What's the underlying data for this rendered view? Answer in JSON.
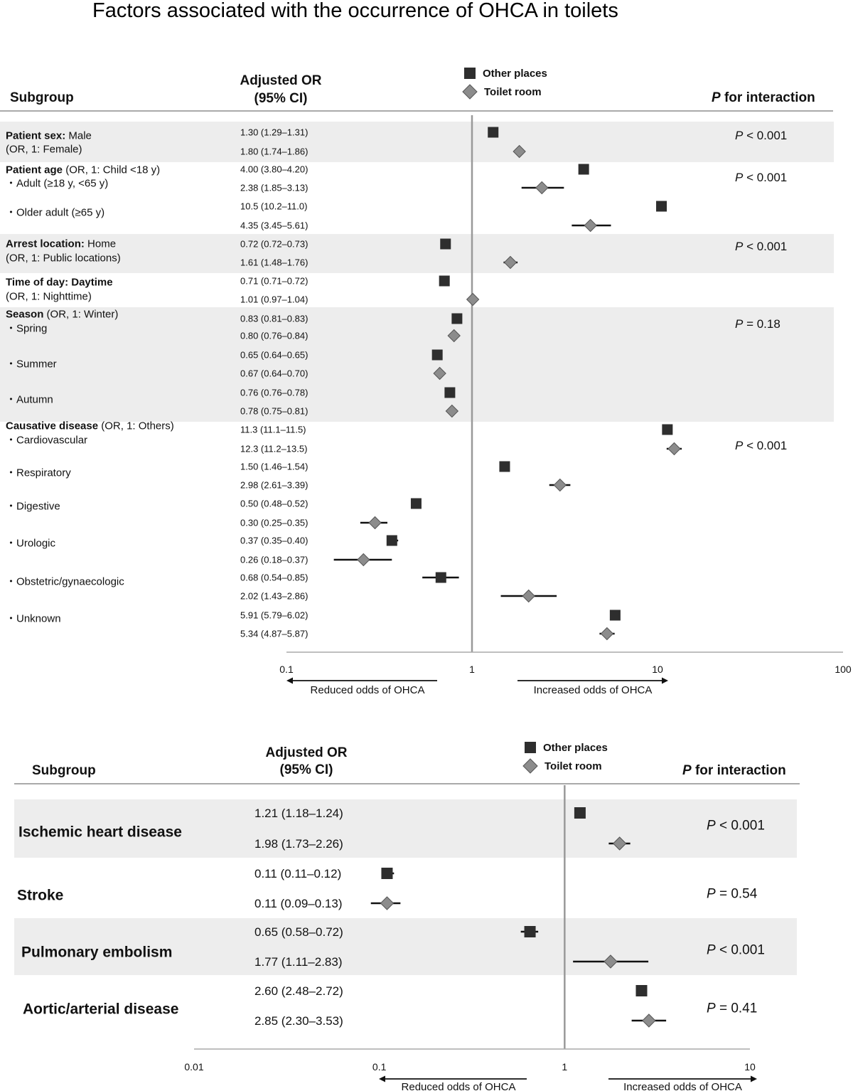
{
  "colors": {
    "other_places": "#2e2e2e",
    "toilet_room": "#8c8c8c",
    "band": "#ededed",
    "ref_line": "#999999",
    "axis": "#aaaaaa"
  },
  "chart_data": [
    {
      "type": "forest",
      "title": "Factors associated with the occurrence of OHCA in toilets",
      "xscale": "log",
      "xlim": [
        0.1,
        100
      ],
      "xticks": [
        "0.1",
        "1",
        "10",
        "100"
      ],
      "reference": 1,
      "headers": {
        "subgroup": "Subgroup",
        "or_line1": "Adjusted OR",
        "or_line2": "(95% CI)",
        "p_bold": "P",
        "p_rest": " for interaction"
      },
      "legend": {
        "other": "Other places",
        "toilet": "Toilet room"
      },
      "arrows": {
        "left": "Reduced odds of OHCA",
        "right": "Increased odds of OHCA"
      },
      "bands": [
        {
          "from_row": 0,
          "to_row": 0
        },
        {
          "from_row": 3,
          "to_row": 3
        },
        {
          "from_row": 5,
          "to_row": 7
        }
      ],
      "rows": [
        {
          "labels": [
            {
              "bold": "Patient sex:",
              "rest": " Male"
            },
            {
              "bold": "",
              "rest": "(OR, 1: Female)"
            }
          ],
          "p": {
            "sym": "P",
            "rest": " < 0.001"
          },
          "other": {
            "text": "1.30 (1.29–1.31)",
            "or": 1.3,
            "lo": 1.29,
            "hi": 1.31
          },
          "toilet": {
            "text": "1.80 (1.74–1.86)",
            "or": 1.8,
            "lo": 1.74,
            "hi": 1.86
          }
        },
        {
          "labels": [
            {
              "bold": "Patient age",
              "rest": " (OR, 1: Child <18 y)"
            },
            {
              "bold": "",
              "rest": "・Adult (≥18 y, <65 y)"
            }
          ],
          "p": {
            "sym": "P",
            "rest": " < 0.001"
          },
          "other": {
            "text": "4.00 (3.80–4.20)",
            "or": 4.0,
            "lo": 3.8,
            "hi": 4.2
          },
          "toilet": {
            "text": "2.38 (1.85–3.13)",
            "or": 2.38,
            "lo": 1.85,
            "hi": 3.13
          }
        },
        {
          "labels": [
            {
              "bold": "",
              "rest": "・Older adult (≥65 y)"
            }
          ],
          "p": null,
          "other": {
            "text": "10.5 (10.2–11.0)",
            "or": 10.5,
            "lo": 10.2,
            "hi": 11.0
          },
          "toilet": {
            "text": "4.35 (3.45–5.61)",
            "or": 4.35,
            "lo": 3.45,
            "hi": 5.61
          }
        },
        {
          "labels": [
            {
              "bold": "Arrest location:",
              "rest": " Home"
            },
            {
              "bold": "",
              "rest": "(OR, 1: Public locations)"
            }
          ],
          "p": {
            "sym": "P",
            "rest": " < 0.001"
          },
          "other": {
            "text": "0.72 (0.72–0.73)",
            "or": 0.72,
            "lo": 0.72,
            "hi": 0.73
          },
          "toilet": {
            "text": "1.61 (1.48–1.76)",
            "or": 1.61,
            "lo": 1.48,
            "hi": 1.76
          }
        },
        {
          "labels": [
            {
              "bold": "Time of day: Daytime",
              "rest": ""
            },
            {
              "bold": "",
              "rest": "(OR, 1: Nighttime)"
            }
          ],
          "p": null,
          "other": {
            "text": "0.71 (0.71–0.72)",
            "or": 0.71,
            "lo": 0.71,
            "hi": 0.72
          },
          "toilet": {
            "text": "1.01 (0.97–1.04)",
            "or": 1.01,
            "lo": 0.97,
            "hi": 1.04
          }
        },
        {
          "labels": [
            {
              "bold": "Season",
              "rest": " (OR, 1: Winter)"
            },
            {
              "bold": "",
              "rest": "・Spring"
            }
          ],
          "p": {
            "sym": "P",
            "rest": " = 0.18"
          },
          "other": {
            "text": "0.83 (0.81–0.83)",
            "or": 0.83,
            "lo": 0.81,
            "hi": 0.83
          },
          "toilet": {
            "text": "0.80 (0.76–0.84)",
            "or": 0.8,
            "lo": 0.76,
            "hi": 0.84
          }
        },
        {
          "labels": [
            {
              "bold": "",
              "rest": "・Summer"
            }
          ],
          "p": null,
          "other": {
            "text": "0.65 (0.64–0.65)",
            "or": 0.65,
            "lo": 0.64,
            "hi": 0.65
          },
          "toilet": {
            "text": "0.67 (0.64–0.70)",
            "or": 0.67,
            "lo": 0.64,
            "hi": 0.7
          }
        },
        {
          "labels": [
            {
              "bold": "",
              "rest": "・Autumn"
            }
          ],
          "p": null,
          "other": {
            "text": "0.76 (0.76–0.78)",
            "or": 0.76,
            "lo": 0.76,
            "hi": 0.78
          },
          "toilet": {
            "text": "0.78 (0.75–0.81)",
            "or": 0.78,
            "lo": 0.75,
            "hi": 0.81
          }
        },
        {
          "labels": [
            {
              "bold": "Causative disease",
              "rest": " (OR, 1: Others)"
            },
            {
              "bold": "",
              "rest": "・Cardiovascular"
            }
          ],
          "p": {
            "sym": "P",
            "rest": " < 0.001"
          },
          "other": {
            "text": "11.3 (11.1–11.5)",
            "or": 11.3,
            "lo": 11.1,
            "hi": 11.5
          },
          "toilet": {
            "text": "12.3 (11.2–13.5)",
            "or": 12.3,
            "lo": 11.2,
            "hi": 13.5
          }
        },
        {
          "labels": [
            {
              "bold": "",
              "rest": "・Respiratory"
            }
          ],
          "p": null,
          "other": {
            "text": "1.50 (1.46–1.54)",
            "or": 1.5,
            "lo": 1.46,
            "hi": 1.54
          },
          "toilet": {
            "text": "2.98 (2.61–3.39)",
            "or": 2.98,
            "lo": 2.61,
            "hi": 3.39
          }
        },
        {
          "labels": [
            {
              "bold": "",
              "rest": "・Digestive"
            }
          ],
          "p": null,
          "other": {
            "text": "0.50 (0.48–0.52)",
            "or": 0.5,
            "lo": 0.48,
            "hi": 0.52
          },
          "toilet": {
            "text": "0.30 (0.25–0.35)",
            "or": 0.3,
            "lo": 0.25,
            "hi": 0.35
          }
        },
        {
          "labels": [
            {
              "bold": "",
              "rest": "・Urologic"
            }
          ],
          "p": null,
          "other": {
            "text": "0.37 (0.35–0.40)",
            "or": 0.37,
            "lo": 0.35,
            "hi": 0.4
          },
          "toilet": {
            "text": "0.26 (0.18–0.37)",
            "or": 0.26,
            "lo": 0.18,
            "hi": 0.37
          }
        },
        {
          "labels": [
            {
              "bold": "",
              "rest": "・Obstetric/gynaecologic"
            }
          ],
          "p": null,
          "other": {
            "text": "0.68 (0.54–0.85)",
            "or": 0.68,
            "lo": 0.54,
            "hi": 0.85
          },
          "toilet": {
            "text": "2.02 (1.43–2.86)",
            "or": 2.02,
            "lo": 1.43,
            "hi": 2.86
          }
        },
        {
          "labels": [
            {
              "bold": "",
              "rest": "・Unknown"
            }
          ],
          "p": null,
          "other": {
            "text": "5.91 (5.79–6.02)",
            "or": 5.91,
            "lo": 5.79,
            "hi": 6.02
          },
          "toilet": {
            "text": "5.34 (4.87–5.87)",
            "or": 5.34,
            "lo": 4.87,
            "hi": 5.87
          }
        }
      ]
    },
    {
      "type": "forest",
      "title": "",
      "xscale": "log",
      "xlim": [
        0.01,
        10
      ],
      "xticks": [
        "0.01",
        "0.1",
        "1",
        "10"
      ],
      "reference": 1,
      "headers": {
        "subgroup": "Subgroup",
        "or_line1": "Adjusted OR",
        "or_line2": "(95% CI)",
        "p_bold": "P",
        "p_rest": " for interaction"
      },
      "legend": {
        "other": "Other places",
        "toilet": "Toilet room"
      },
      "arrows": {
        "left": "Reduced odds of OHCA",
        "right": "Increased odds of OHCA"
      },
      "bands": [
        {
          "from_row": 0,
          "to_row": 0
        },
        {
          "from_row": 2,
          "to_row": 2
        }
      ],
      "rows": [
        {
          "labels": [
            {
              "bold": "Ischemic heart disease",
              "rest": ""
            }
          ],
          "p": {
            "sym": "P",
            "rest": " < 0.001"
          },
          "other": {
            "text": "1.21 (1.18–1.24)",
            "or": 1.21,
            "lo": 1.18,
            "hi": 1.24
          },
          "toilet": {
            "text": "1.98 (1.73–2.26)",
            "or": 1.98,
            "lo": 1.73,
            "hi": 2.26
          }
        },
        {
          "labels": [
            {
              "bold": "Stroke",
              "rest": ""
            }
          ],
          "p": {
            "sym": "P",
            "rest": " = 0.54"
          },
          "other": {
            "text": "0.11 (0.11–0.12)",
            "or": 0.11,
            "lo": 0.11,
            "hi": 0.12
          },
          "toilet": {
            "text": "0.11 (0.09–0.13)",
            "or": 0.11,
            "lo": 0.09,
            "hi": 0.13
          }
        },
        {
          "labels": [
            {
              "bold": "Pulmonary embolism",
              "rest": ""
            }
          ],
          "p": {
            "sym": "P",
            "rest": " < 0.001"
          },
          "other": {
            "text": "0.65 (0.58–0.72)",
            "or": 0.65,
            "lo": 0.58,
            "hi": 0.72
          },
          "toilet": {
            "text": "1.77 (1.11–2.83)",
            "or": 1.77,
            "lo": 1.11,
            "hi": 2.83
          }
        },
        {
          "labels": [
            {
              "bold": "Aortic/arterial disease",
              "rest": ""
            }
          ],
          "p": {
            "sym": "P",
            "rest": " = 0.41"
          },
          "other": {
            "text": "2.60 (2.48–2.72)",
            "or": 2.6,
            "lo": 2.48,
            "hi": 2.72
          },
          "toilet": {
            "text": "2.85 (2.30–3.53)",
            "or": 2.85,
            "lo": 2.3,
            "hi": 3.53
          }
        }
      ]
    }
  ]
}
